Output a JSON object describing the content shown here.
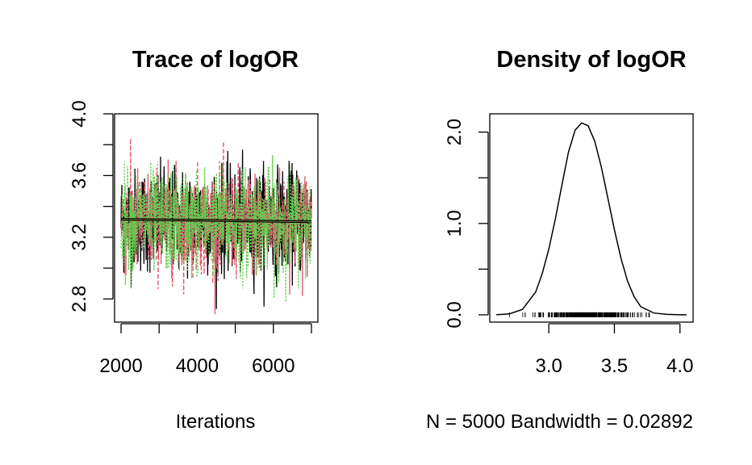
{
  "chart_data": [
    {
      "type": "line",
      "title": "Trace of logOR",
      "xlabel": "Iterations",
      "ylabel": "",
      "xlim": [
        2000,
        7000
      ],
      "ylim": [
        2.65,
        4.0
      ],
      "x_ticks": [
        2000,
        4000,
        6000
      ],
      "x_tick_labels": [
        "2000",
        "4000",
        "6000"
      ],
      "y_ticks": [
        2.8,
        3.2,
        3.6,
        4.0
      ],
      "y_tick_labels": [
        "2.8",
        "3.2",
        "3.6",
        "4.0"
      ],
      "grid": false,
      "legend": "none",
      "chain_mean": 3.3,
      "chain_min": 2.7,
      "chain_max": 3.96,
      "series": [
        {
          "color": "#000000",
          "line_style": "solid",
          "mean": 3.31
        },
        {
          "color": "#DF536B",
          "line_style": "dashed",
          "mean": 3.3
        },
        {
          "color": "#61D04F",
          "line_style": "dotted",
          "mean": 3.3
        }
      ]
    },
    {
      "type": "line",
      "title": "Density of logOR",
      "xlabel": "N = 5000   Bandwidth = 0.02892",
      "ylabel": "",
      "xlim": [
        2.55,
        4.1
      ],
      "ylim": [
        -0.08,
        2.2
      ],
      "x_ticks": [
        3.0,
        3.5,
        4.0
      ],
      "x_tick_labels": [
        "3.0",
        "3.5",
        "4.0"
      ],
      "y_ticks": [
        0.0,
        0.5,
        1.0,
        1.5,
        2.0
      ],
      "y_tick_labels": [
        "0.0",
        "",
        "1.0",
        "",
        "2.0"
      ],
      "grid": false,
      "legend": "none",
      "series": [
        {
          "color": "#000000",
          "x": [
            2.6,
            2.7,
            2.8,
            2.9,
            2.95,
            3.0,
            3.05,
            3.1,
            3.15,
            3.2,
            3.25,
            3.3,
            3.35,
            3.4,
            3.45,
            3.5,
            3.55,
            3.6,
            3.65,
            3.7,
            3.8,
            3.9,
            4.0,
            4.05
          ],
          "y": [
            0.0,
            0.01,
            0.06,
            0.25,
            0.45,
            0.72,
            1.05,
            1.42,
            1.78,
            2.02,
            2.1,
            2.07,
            1.9,
            1.62,
            1.28,
            0.93,
            0.62,
            0.37,
            0.2,
            0.09,
            0.02,
            0.005,
            0.0,
            0.0
          ]
        }
      ],
      "rug_range": [
        2.7,
        3.96
      ]
    }
  ]
}
